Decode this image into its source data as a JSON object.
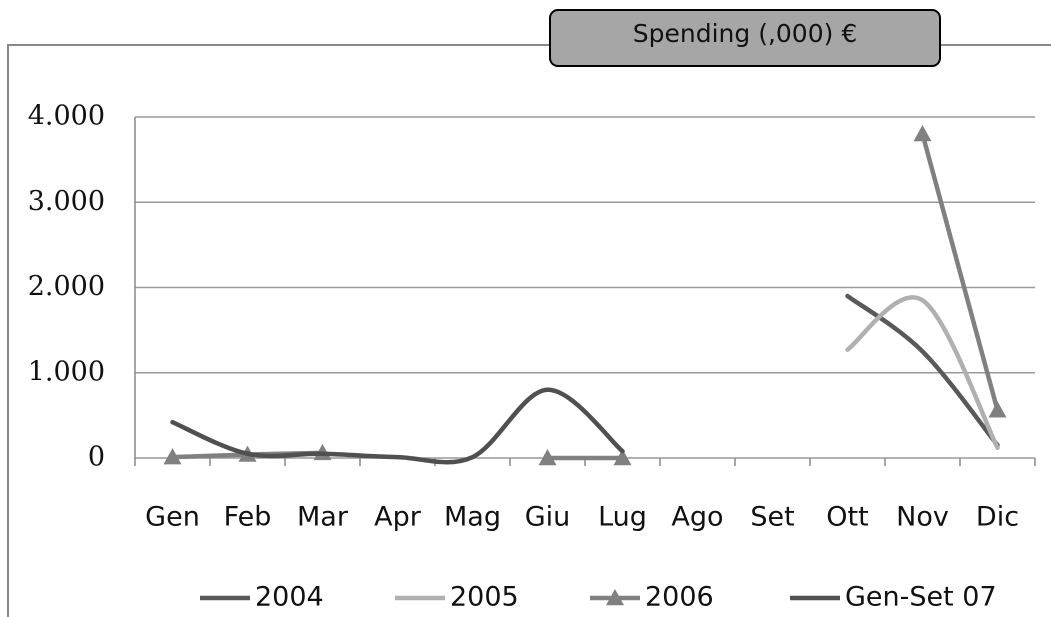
{
  "chart_data": {
    "type": "line",
    "title": "Spending (,000) €",
    "categories": [
      "Gen",
      "Feb",
      "Mar",
      "Apr",
      "Mag",
      "Giu",
      "Lug",
      "Ago",
      "Set",
      "Ott",
      "Nov",
      "Dic"
    ],
    "series": [
      {
        "name": "2004",
        "color": "#595959",
        "values": [
          null,
          null,
          null,
          null,
          null,
          null,
          null,
          null,
          null,
          1900,
          1250,
          150
        ]
      },
      {
        "name": "2005",
        "color": "#b0b0b0",
        "values": [
          null,
          null,
          null,
          null,
          null,
          null,
          null,
          null,
          null,
          1270,
          1850,
          120
        ],
        "smooth": true
      },
      {
        "name": "2006",
        "color": "#808080",
        "marker": "triangle",
        "values": [
          10,
          40,
          60,
          null,
          null,
          0,
          0,
          null,
          null,
          null,
          3800,
          560
        ]
      },
      {
        "name": "Gen-Set 07",
        "color": "#505050",
        "values": [
          420,
          50,
          50,
          10,
          10,
          800,
          80,
          null,
          null,
          null,
          null,
          null
        ]
      }
    ],
    "ylim": [
      0,
      4000
    ],
    "yticks": [
      0,
      {
        "value": 1000,
        "label": "1.000"
      },
      {
        "value": 2000,
        "label": "2.000"
      },
      {
        "value": 3000,
        "label": "3.000"
      },
      {
        "value": 4000,
        "label": "4.000"
      }
    ],
    "grid": true,
    "legend": "bottom"
  }
}
